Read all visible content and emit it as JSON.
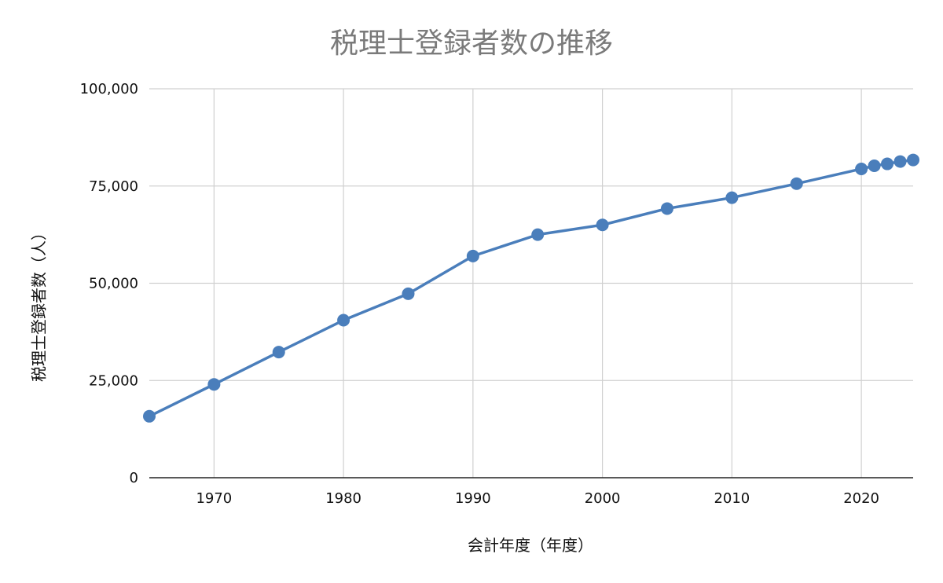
{
  "chart_data": {
    "type": "line",
    "title": "税理士登録者数の推移",
    "xlabel": "会計年度（年度）",
    "ylabel": "税理士登録者数（人）",
    "xlim": [
      1965,
      2024
    ],
    "ylim": [
      0,
      100000
    ],
    "x_ticks": [
      1970,
      1980,
      1990,
      2000,
      2010,
      2020
    ],
    "x_tick_labels": [
      "1970",
      "1980",
      "1990",
      "2000",
      "2010",
      "2020"
    ],
    "y_ticks": [
      0,
      25000,
      50000,
      75000,
      100000
    ],
    "y_tick_labels": [
      "0",
      "25,000",
      "50,000",
      "75,000",
      "100,000"
    ],
    "grid": true,
    "legend": "none",
    "series": [
      {
        "color": "#4a7ebb",
        "x": [
          1965,
          1970,
          1975,
          1980,
          1985,
          1990,
          1995,
          2000,
          2005,
          2010,
          2015,
          2020,
          2021,
          2022,
          2023,
          2024
        ],
        "y": [
          15800,
          24000,
          32300,
          40500,
          47300,
          57000,
          62500,
          65000,
          69200,
          72000,
          75600,
          79400,
          80200,
          80700,
          81300,
          81700
        ]
      }
    ]
  }
}
